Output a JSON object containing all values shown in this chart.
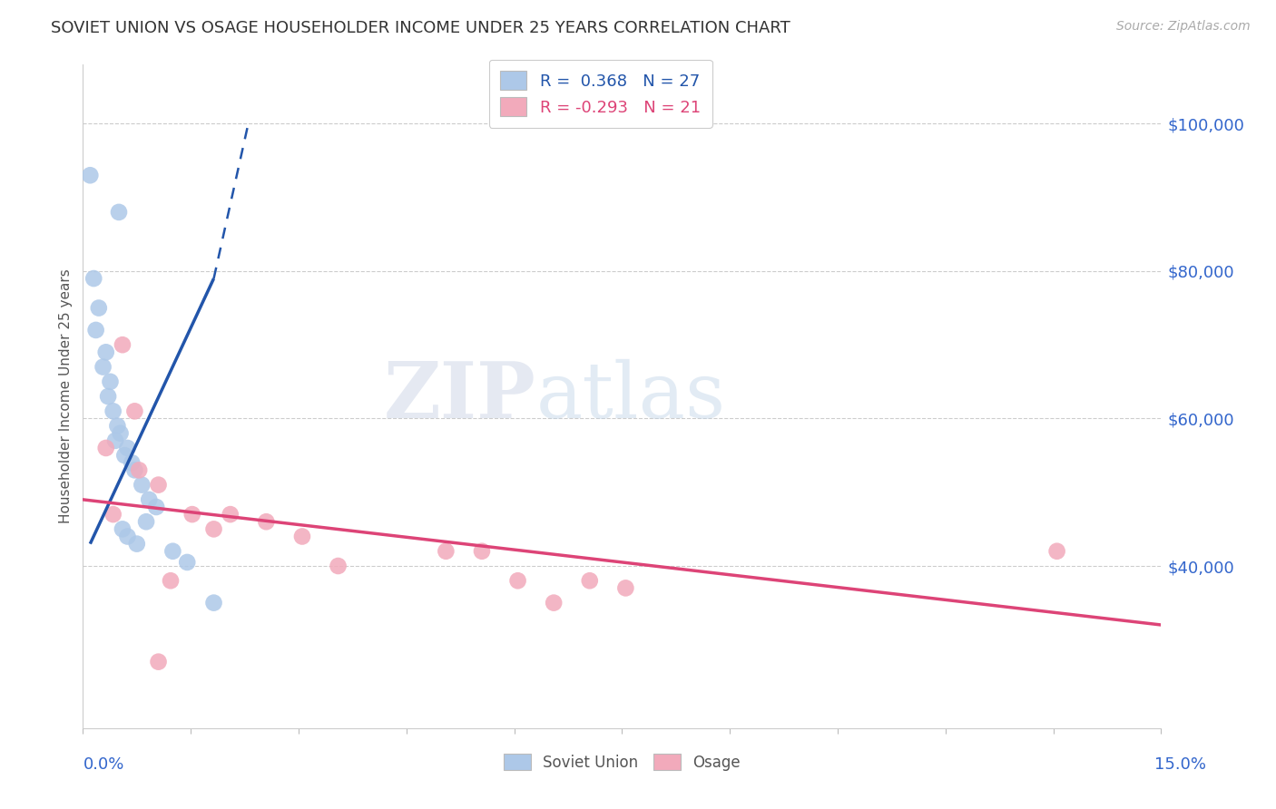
{
  "title": "SOVIET UNION VS OSAGE HOUSEHOLDER INCOME UNDER 25 YEARS CORRELATION CHART",
  "source": "Source: ZipAtlas.com",
  "ylabel": "Householder Income Under 25 years",
  "xmin": 0.0,
  "xmax": 15.0,
  "ymin": 18000,
  "ymax": 108000,
  "yticks": [
    40000,
    60000,
    80000,
    100000
  ],
  "ytick_labels": [
    "$40,000",
    "$60,000",
    "$80,000",
    "$100,000"
  ],
  "watermark_zip": "ZIP",
  "watermark_atlas": "atlas",
  "legend_soviet_r": " 0.368",
  "legend_soviet_n": "27",
  "legend_osage_r": "-0.293",
  "legend_osage_n": "21",
  "soviet_color": "#adc8e8",
  "osage_color": "#f2aabb",
  "soviet_line_color": "#2255aa",
  "osage_line_color": "#dd4477",
  "background_color": "#ffffff",
  "grid_color": "#cccccc",
  "soviet_scatter_x": [
    0.1,
    0.5,
    0.15,
    0.22,
    0.18,
    0.32,
    0.28,
    0.38,
    0.35,
    0.42,
    0.48,
    0.52,
    0.45,
    0.62,
    0.58,
    0.68,
    0.72,
    0.82,
    0.92,
    1.02,
    0.88,
    0.62,
    0.55,
    0.75,
    1.25,
    1.45,
    1.82
  ],
  "soviet_scatter_y": [
    93000,
    88000,
    79000,
    75000,
    72000,
    69000,
    67000,
    65000,
    63000,
    61000,
    59000,
    58000,
    57000,
    56000,
    55000,
    54000,
    53000,
    51000,
    49000,
    48000,
    46000,
    44000,
    45000,
    43000,
    42000,
    40500,
    35000
  ],
  "osage_scatter_x": [
    0.32,
    0.55,
    0.78,
    1.05,
    1.52,
    2.05,
    2.55,
    3.05,
    5.05,
    5.55,
    7.05,
    7.55,
    1.82,
    0.72,
    1.22,
    3.55,
    1.05,
    6.05,
    6.55,
    0.42,
    13.55
  ],
  "osage_scatter_y": [
    56000,
    70000,
    53000,
    51000,
    47000,
    47000,
    46000,
    44000,
    42000,
    42000,
    38000,
    37000,
    45000,
    61000,
    38000,
    40000,
    27000,
    38000,
    35000,
    47000,
    42000
  ],
  "soviet_line_x0": 0.1,
  "soviet_line_x1": 1.82,
  "soviet_line_y0": 43000,
  "soviet_line_y1": 79000,
  "soviet_dash_x0": 1.82,
  "soviet_dash_x1": 2.3,
  "soviet_dash_y0": 79000,
  "soviet_dash_y1": 100000,
  "osage_line_x0": 0.0,
  "osage_line_x1": 15.0,
  "osage_line_y0": 49000,
  "osage_line_y1": 32000
}
